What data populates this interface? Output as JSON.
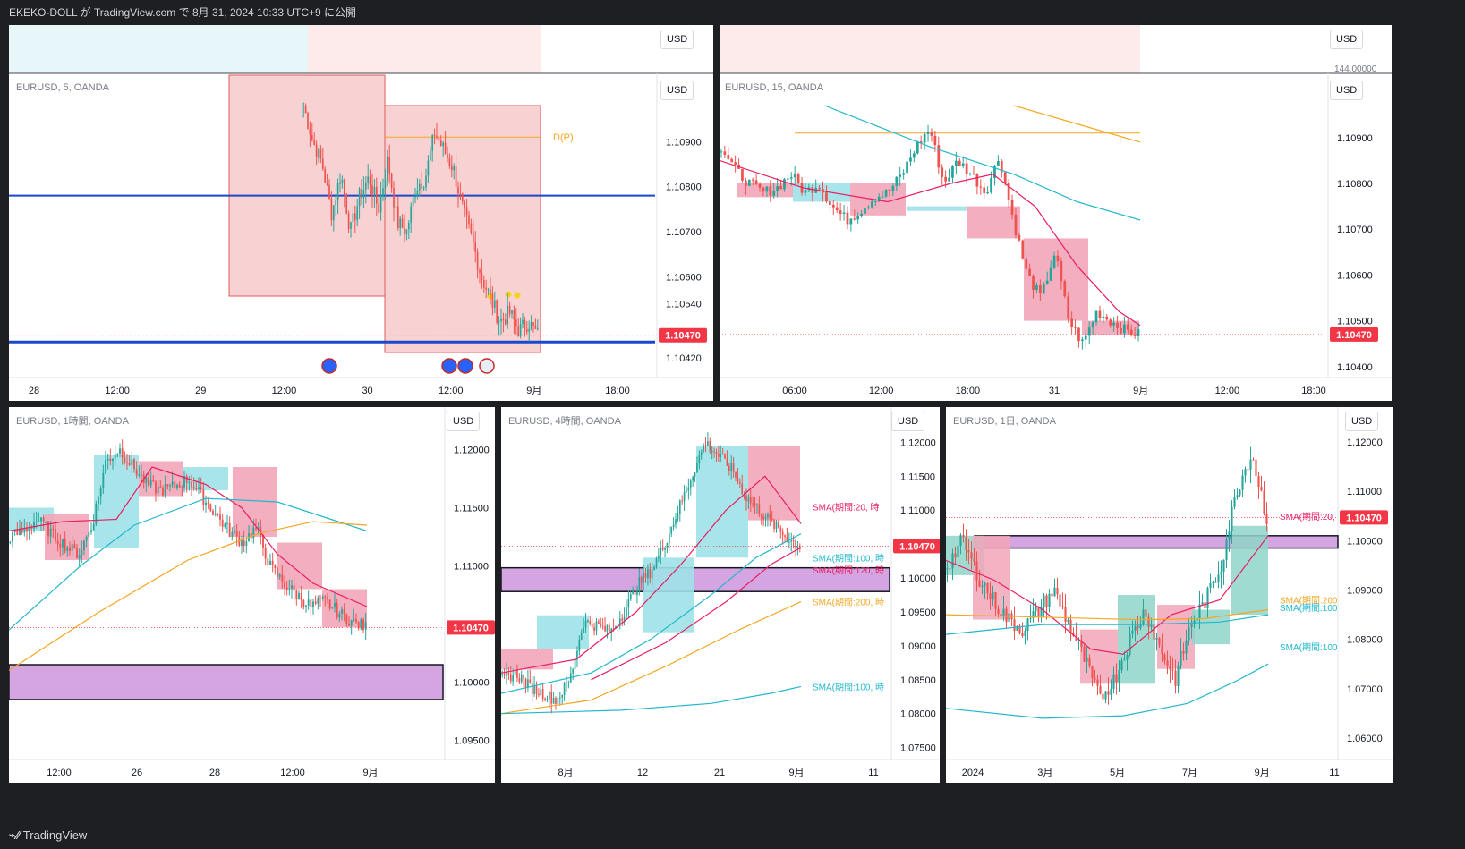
{
  "header": {
    "publish_line": "EKEKO-DOLL が TradingView.com で 8月 31, 2024 10:33 UTC+9 に公開"
  },
  "footer": {
    "brand": "TradingView"
  },
  "colors": {
    "bull": "#26a69a",
    "bear": "#ef5350",
    "pink_box": "#f2a6b8",
    "cyan_box": "#9fe2e8",
    "purple_zone": "#d4a5e0",
    "blue_line": "#1848cc",
    "sma_pink": "#e91e63",
    "sma_cyan": "#22b8cc",
    "sma_orange": "#f5a623",
    "price_tag": "#f23645"
  },
  "chart_data": [
    {
      "id": "m5",
      "type": "candlestick",
      "title": "EURUSD, 5, OANDA",
      "currency_button": "USD",
      "top_currency_button": "USD",
      "price_label": "1.10470",
      "yaxis_ticks": [
        "1.10900",
        "1.10800",
        "1.10700",
        "1.10600",
        "1.10540",
        "1.10420"
      ],
      "xaxis_ticks": [
        "28",
        "12:00",
        "29",
        "12:00",
        "30",
        "12:00",
        "9月",
        "18:00"
      ],
      "annotation": "D(P)",
      "ylim": [
        1.1038,
        1.1098
      ],
      "levels": {
        "blue_line": 1.1078,
        "blue_bottom": 1.10455,
        "dp": 1.1091
      },
      "close_path": [
        1.1098,
        1.109,
        1.1085,
        1.1074,
        1.1083,
        1.107,
        1.1078,
        1.1082,
        1.1075,
        1.1086,
        1.1072,
        1.107,
        1.108,
        1.1082,
        1.1092,
        1.1088,
        1.1084,
        1.1075,
        1.1068,
        1.106,
        1.1055,
        1.105,
        1.1052,
        1.1048,
        1.105,
        1.1047
      ]
    },
    {
      "id": "m15",
      "type": "candlestick",
      "title": "EURUSD, 15, OANDA",
      "currency_button": "USD",
      "top_currency_button": "USD",
      "top_axis_label": "144.00000",
      "price_label": "1.10470",
      "yaxis_ticks": [
        "1.10900",
        "1.10800",
        "1.10700",
        "1.10600",
        "1.10500",
        "1.10400"
      ],
      "xaxis_ticks": [
        "06:00",
        "12:00",
        "18:00",
        "31",
        "9月",
        "12:00",
        "18:00"
      ],
      "ylim": [
        1.1038,
        1.1097
      ],
      "levels": {
        "orange_line": 1.1091
      },
      "close_path": [
        1.1088,
        1.1083,
        1.108,
        1.1078,
        1.1079,
        1.1082,
        1.1078,
        1.108,
        1.1075,
        1.1072,
        1.1074,
        1.1077,
        1.1078,
        1.1082,
        1.1088,
        1.1092,
        1.108,
        1.1085,
        1.1082,
        1.1078,
        1.1086,
        1.1072,
        1.106,
        1.1055,
        1.1065,
        1.105,
        1.1045,
        1.1052,
        1.105,
        1.1048,
        1.1047
      ]
    },
    {
      "id": "h1",
      "type": "candlestick",
      "title": "EURUSD, 1時間, OANDA",
      "currency_button": "USD",
      "price_label": "1.10470",
      "yaxis_ticks": [
        "1.12000",
        "1.11500",
        "1.11000",
        "1.10000",
        "1.09500"
      ],
      "xaxis_ticks": [
        "12:00",
        "26",
        "28",
        "12:00",
        "9月"
      ],
      "ylim": [
        1.0935,
        1.1215
      ],
      "close_path": [
        1.1125,
        1.113,
        1.114,
        1.1128,
        1.1118,
        1.111,
        1.1135,
        1.119,
        1.12,
        1.1185,
        1.117,
        1.1165,
        1.1168,
        1.1175,
        1.116,
        1.1145,
        1.113,
        1.112,
        1.1133,
        1.11,
        1.1085,
        1.1075,
        1.1065,
        1.107,
        1.106,
        1.1052,
        1.1047
      ],
      "purple_zone": [
        1.0985,
        1.1015
      ]
    },
    {
      "id": "h4",
      "type": "candlestick",
      "title": "EURUSD, 4時間, OANDA",
      "currency_button": "USD",
      "price_label": "1.10470",
      "yaxis_ticks": [
        "1.12000",
        "1.11500",
        "1.11000",
        "1.10000",
        "1.09500",
        "1.09000",
        "1.08500",
        "1.08000",
        "1.07500"
      ],
      "xaxis_ticks": [
        "8月",
        "12",
        "21",
        "9月",
        "11"
      ],
      "ylim": [
        1.0735,
        1.1215
      ],
      "sma_labels": [
        "SMA(期間:20, 時",
        "SMA(期間:100, 時",
        "SMA(期間:120, 時",
        "SMA(期間:200, 時",
        "SMA(期間:100, 時"
      ],
      "close_path": [
        1.085,
        1.086,
        1.084,
        1.083,
        1.082,
        1.085,
        1.0935,
        1.093,
        1.092,
        1.095,
        1.099,
        1.101,
        1.105,
        1.11,
        1.115,
        1.12,
        1.118,
        1.116,
        1.112,
        1.11,
        1.108,
        1.106,
        1.1047
      ],
      "purple_zone": [
        1.098,
        1.1015
      ]
    },
    {
      "id": "d1",
      "type": "candlestick",
      "title": "EURUSD, 1日, OANDA",
      "currency_button": "USD",
      "price_label": "1.10470",
      "yaxis_ticks": [
        "1.12000",
        "1.11000",
        "1.10000",
        "1.09000",
        "1.08000",
        "1.07000",
        "1.06000"
      ],
      "xaxis_ticks": [
        "2024",
        "3月",
        "5月",
        "7月",
        "9月",
        "11"
      ],
      "ylim": [
        1.056,
        1.122
      ],
      "sma_labels": [
        "SMA(期間:20,",
        "SMA(期間:200",
        "SMA(期間:100",
        "SMA(期間:100"
      ],
      "close_path": [
        1.095,
        1.1,
        1.093,
        1.088,
        1.084,
        1.082,
        1.086,
        1.09,
        1.083,
        1.076,
        1.068,
        1.072,
        1.08,
        1.086,
        1.078,
        1.072,
        1.083,
        1.088,
        1.095,
        1.11,
        1.118,
        1.1047
      ],
      "purple_zone": [
        1.0985,
        1.101
      ]
    }
  ]
}
